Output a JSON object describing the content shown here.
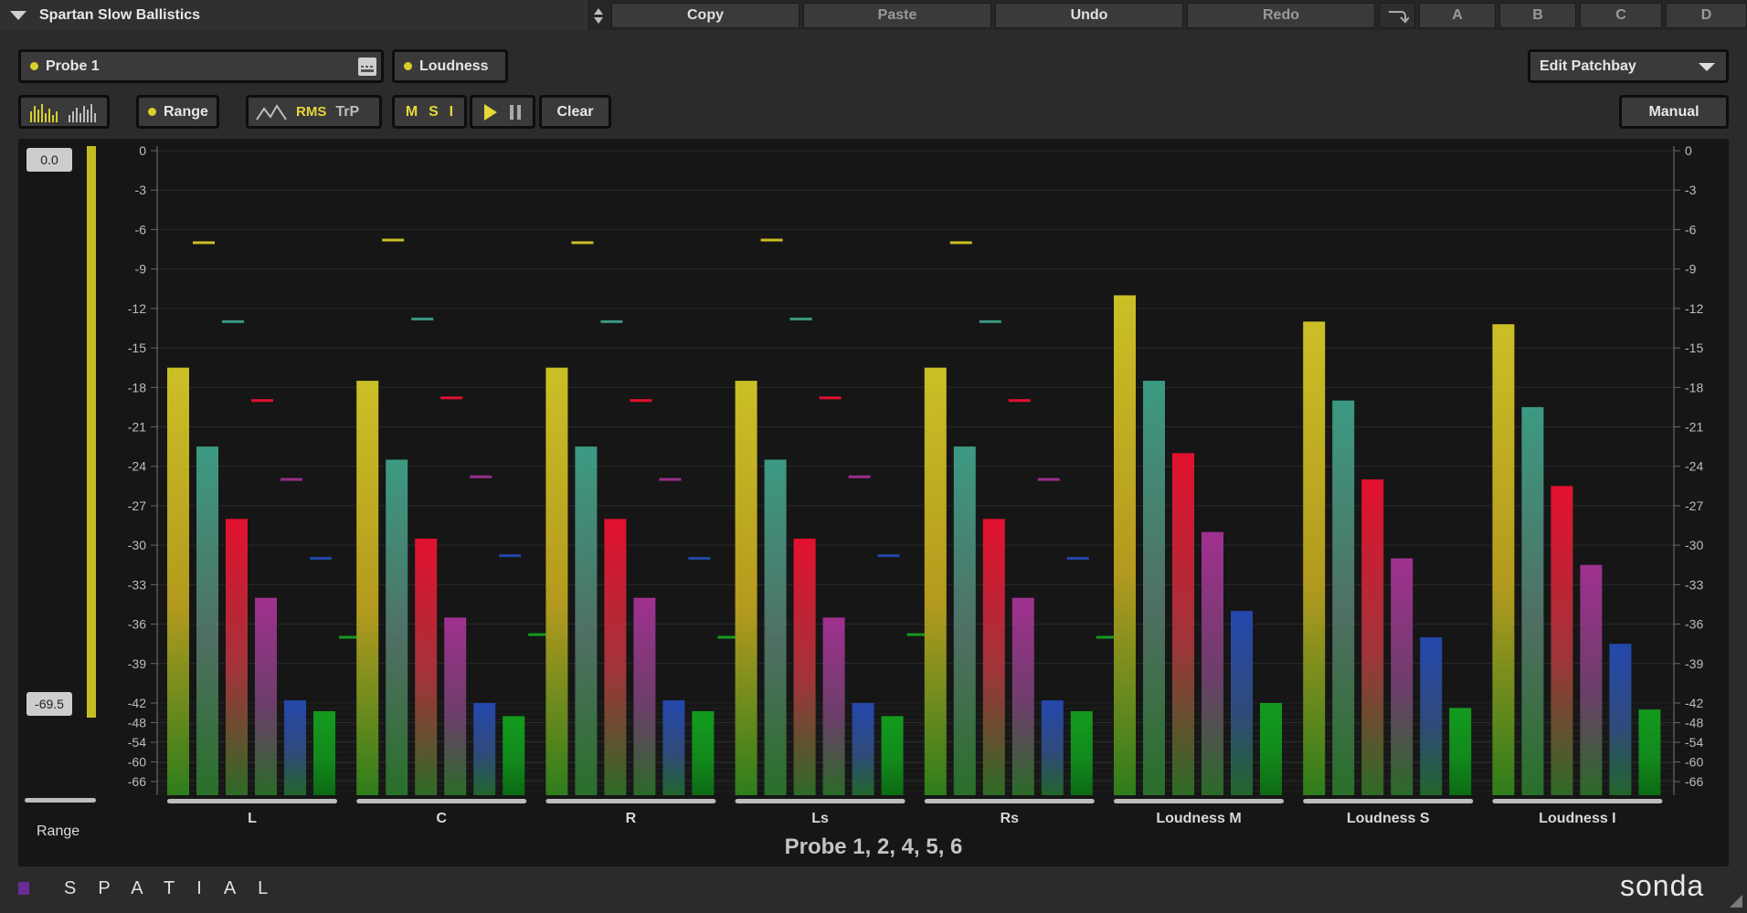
{
  "topbar": {
    "preset_name": "Spartan Slow Ballistics",
    "copy": "Copy",
    "paste": "Paste",
    "undo": "Undo",
    "redo": "Redo",
    "slot_a": "A",
    "slot_b": "B",
    "slot_c": "C",
    "slot_d": "D"
  },
  "controls": {
    "probe_select": "Probe 1",
    "mode_select": "Loudness",
    "patchbay": "Edit Patchbay",
    "range_toggle": "Range",
    "rms": "RMS",
    "trp": "TrP",
    "m": "M",
    "s": "S",
    "i": "I",
    "clear": "Clear",
    "manual": "Manual"
  },
  "range": {
    "top_value": "0.0",
    "bottom_value": "-69.5",
    "label": "Range"
  },
  "probe_title": "Probe 1, 2, 4, 5, 6",
  "footer": {
    "brand": "SPATIAL",
    "logo": "sonda"
  },
  "colors": {
    "yellow": "#c9bd24",
    "teal": "#3c9a82",
    "red": "#e0112f",
    "magenta": "#9a2e8c",
    "blue": "#2246a8",
    "green": "#149a1e"
  },
  "chart_data": {
    "type": "bar",
    "y_ticks": [
      0,
      -3,
      -6,
      -9,
      -12,
      -15,
      -18,
      -21,
      -24,
      -27,
      -30,
      -33,
      -36,
      -39,
      -42,
      -48,
      -54,
      -60,
      -66
    ],
    "y_ticks_labels": [
      "0",
      "-3",
      "-6",
      "-9",
      "-12",
      "-15",
      "-18",
      "-21",
      "-24",
      "-27",
      "-30",
      "-33",
      "-36",
      "-39",
      "-42",
      "-48",
      "-54",
      "-60",
      "-66"
    ],
    "scale": "segmented dB (linear 0 to -42, compressed -42 to -66)",
    "channels": [
      {
        "label": "L",
        "values": [
          -16.5,
          -22.5,
          -28.0,
          -34.0,
          -41.8,
          -44.5
        ],
        "peaks": [
          -7.0,
          -13.0,
          -19.0,
          -25.0,
          -31.0,
          -37.0
        ]
      },
      {
        "label": "C",
        "values": [
          -17.5,
          -23.5,
          -29.5,
          -35.5,
          -42.0,
          -46.0
        ],
        "peaks": [
          -6.8,
          -12.8,
          -18.8,
          -24.8,
          -30.8,
          -36.8
        ]
      },
      {
        "label": "R",
        "values": [
          -16.5,
          -22.5,
          -28.0,
          -34.0,
          -41.8,
          -44.5
        ],
        "peaks": [
          -7.0,
          -13.0,
          -19.0,
          -25.0,
          -31.0,
          -37.0
        ]
      },
      {
        "label": "Ls",
        "values": [
          -17.5,
          -23.5,
          -29.5,
          -35.5,
          -42.0,
          -46.0
        ],
        "peaks": [
          -6.8,
          -12.8,
          -18.8,
          -24.8,
          -30.8,
          -36.8
        ]
      },
      {
        "label": "Rs",
        "values": [
          -16.5,
          -22.5,
          -28.0,
          -34.0,
          -41.8,
          -44.5
        ],
        "peaks": [
          -7.0,
          -13.0,
          -19.0,
          -25.0,
          -31.0,
          -37.0
        ]
      },
      {
        "label": "Loudness M",
        "values": [
          -11.0,
          -17.5,
          -23.0,
          -29.0,
          -35.0,
          -42.0
        ]
      },
      {
        "label": "Loudness S",
        "values": [
          -13.0,
          -19.0,
          -25.0,
          -31.0,
          -37.0,
          -43.5
        ]
      },
      {
        "label": "Loudness I",
        "values": [
          -13.2,
          -19.5,
          -25.5,
          -31.5,
          -37.5,
          -44.0
        ]
      }
    ]
  }
}
